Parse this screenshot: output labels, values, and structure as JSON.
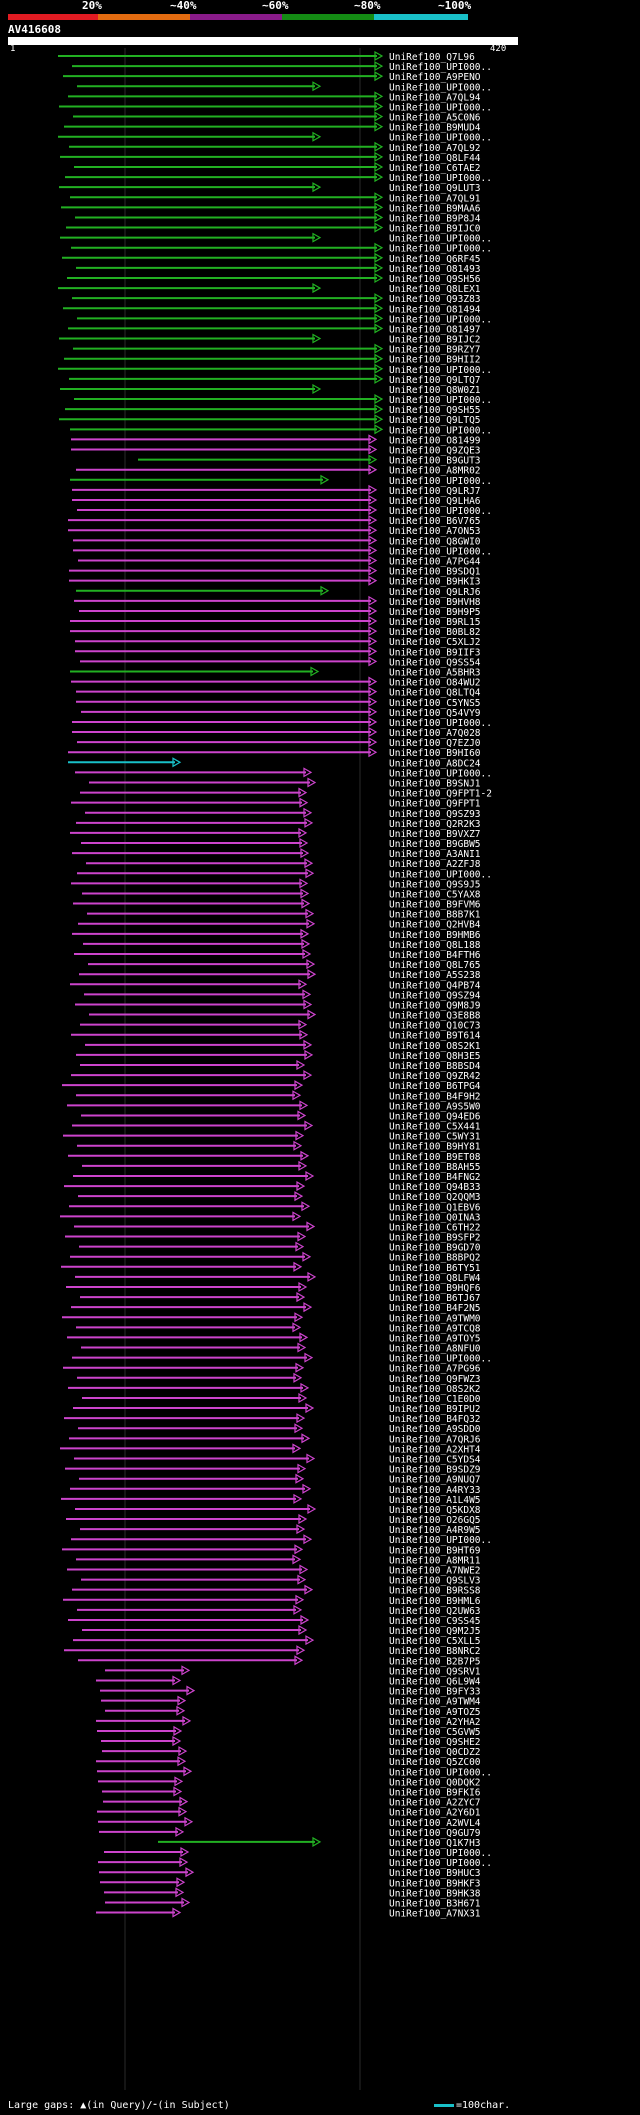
{
  "query_id": "AV416608",
  "ruler": {
    "start": "1",
    "end": "420"
  },
  "percent_scale": [
    {
      "label": "20%",
      "color": "#e11b22"
    },
    {
      "label": "~40%",
      "color": "#e26b10"
    },
    {
      "label": "~60%",
      "color": "#8a1b8a"
    },
    {
      "label": "~80%",
      "color": "#148c14"
    },
    {
      "label": "~100%",
      "color": "#19c0c8"
    }
  ],
  "hit_colors": {
    "magenta": "#cc44cc",
    "green": "#22b022",
    "cyan": "#19c0c8"
  },
  "hits": [
    {
      "name": "UniRef100_Q7L96"
    },
    {
      "name": "UniRef100_UPI000.."
    },
    {
      "name": "UniRef100_A9PENO"
    },
    {
      "name": "UniRef100_UPI000.."
    },
    {
      "name": "UniRef100_A7QL94"
    },
    {
      "name": "UniRef100_UPI000.."
    },
    {
      "name": "UniRef100_A5C0N6"
    },
    {
      "name": "UniRef100_B9MUD4"
    },
    {
      "name": "UniRef100_UPI000.."
    },
    {
      "name": "UniRef100_A7QL92"
    },
    {
      "name": "UniRef100_Q8LF44"
    },
    {
      "name": "UniRef100_C6TAE2"
    },
    {
      "name": "UniRef100_UPI000.."
    },
    {
      "name": "UniRef100_Q9LUT3"
    },
    {
      "name": "UniRef100_A7QL91"
    },
    {
      "name": "UniRef100_B9MAA6"
    },
    {
      "name": "UniRef100_B9P8J4"
    },
    {
      "name": "UniRef100_B9IJC0"
    },
    {
      "name": "UniRef100_UPI000.."
    },
    {
      "name": "UniRef100_UPI000.."
    },
    {
      "name": "UniRef100_Q6RF45"
    },
    {
      "name": "UniRef100_O81493"
    },
    {
      "name": "UniRef100_Q9SH56"
    },
    {
      "name": "UniRef100_Q8LEX1"
    },
    {
      "name": "UniRef100_Q93Z83"
    },
    {
      "name": "UniRef100_O81494"
    },
    {
      "name": "UniRef100_UPI000.."
    },
    {
      "name": "UniRef100_O81497"
    },
    {
      "name": "UniRef100_B9IJC2"
    },
    {
      "name": "UniRef100_B9RZY7"
    },
    {
      "name": "UniRef100_B9HII2"
    },
    {
      "name": "UniRef100_UPI000.."
    },
    {
      "name": "UniRef100_Q9LTQ7"
    },
    {
      "name": "UniRef100_Q8W0Z1"
    },
    {
      "name": "UniRef100_UPI000.."
    },
    {
      "name": "UniRef100_Q9SH55"
    },
    {
      "name": "UniRef100_Q9LTQ5"
    },
    {
      "name": "UniRef100_UPI000.."
    },
    {
      "name": "UniRef100_O81499"
    },
    {
      "name": "UniRef100_Q9ZQE3"
    },
    {
      "name": "UniRef100_B9GUT3"
    },
    {
      "name": "UniRef100_A8MR02"
    },
    {
      "name": "UniRef100_UPI000.."
    },
    {
      "name": "UniRef100_Q9LRJ7"
    },
    {
      "name": "UniRef100_Q9LHA6"
    },
    {
      "name": "UniRef100_UPI000.."
    },
    {
      "name": "UniRef100_B6V765"
    },
    {
      "name": "UniRef100_A7ON53"
    },
    {
      "name": "UniRef100_Q8GWI0"
    },
    {
      "name": "UniRef100_UPI000.."
    },
    {
      "name": "UniRef100_A7PG44"
    },
    {
      "name": "UniRef100_B9SDQ1"
    },
    {
      "name": "UniRef100_B9HKI3"
    },
    {
      "name": "UniRef100_Q9LRJ6"
    },
    {
      "name": "UniRef100_B9HVH8"
    },
    {
      "name": "UniRef100_B9H9P5"
    },
    {
      "name": "UniRef100_B9RL15"
    },
    {
      "name": "UniRef100_B0BL82"
    },
    {
      "name": "UniRef100_C5XLJ2"
    },
    {
      "name": "UniRef100_B9IIF3"
    },
    {
      "name": "UniRef100_Q9SS54"
    },
    {
      "name": "UniRef100_A5BHR3"
    },
    {
      "name": "UniRef100_O84WU2"
    },
    {
      "name": "UniRef100_Q8LTQ4"
    },
    {
      "name": "UniRef100_C5YNS5"
    },
    {
      "name": "UniRef100_Q54VY9"
    },
    {
      "name": "UniRef100_UPI000.."
    },
    {
      "name": "UniRef100_A7Q028"
    },
    {
      "name": "UniRef100_Q7EZJ0"
    },
    {
      "name": "UniRef100_B9HI60"
    },
    {
      "name": "UniRef100_A8DC24"
    },
    {
      "name": "UniRef100_UPI000.."
    },
    {
      "name": "UniRef100_B9SNJ1"
    },
    {
      "name": "UniRef100_Q9FPT1-2"
    },
    {
      "name": "UniRef100_Q9FPT1"
    },
    {
      "name": "UniRef100_Q9SZ93"
    },
    {
      "name": "UniRef100_Q2R2K3"
    },
    {
      "name": "UniRef100_B9VXZ7"
    },
    {
      "name": "UniRef100_B9GBW5"
    },
    {
      "name": "UniRef100_A3ANI1"
    },
    {
      "name": "UniRef100_A2ZFJ8"
    },
    {
      "name": "UniRef100_UPI000.."
    },
    {
      "name": "UniRef100_Q9S9J5"
    },
    {
      "name": "UniRef100_C5YAX8"
    },
    {
      "name": "UniRef100_B9FVM6"
    },
    {
      "name": "UniRef100_B8B7K1"
    },
    {
      "name": "UniRef100_Q2HVB4"
    },
    {
      "name": "UniRef100_B9HMB6"
    },
    {
      "name": "UniRef100_Q8L188"
    },
    {
      "name": "UniRef100_B4FTH6"
    },
    {
      "name": "UniRef100_Q8L765"
    },
    {
      "name": "UniRef100_A5S238"
    },
    {
      "name": "UniRef100_Q4PB74"
    },
    {
      "name": "UniRef100_Q9SZ94"
    },
    {
      "name": "UniRef100_Q9M8J9"
    },
    {
      "name": "UniRef100_Q3E8B8"
    },
    {
      "name": "UniRef100_Q10C73"
    },
    {
      "name": "UniRef100_B9T614"
    },
    {
      "name": "UniRef100_O8S2K1"
    },
    {
      "name": "UniRef100_Q8H3E5"
    },
    {
      "name": "UniRef100_B8BSD4"
    },
    {
      "name": "UniRef100_Q9ZR42"
    },
    {
      "name": "UniRef100_B6TPG4"
    },
    {
      "name": "UniRef100_B4F9H2"
    },
    {
      "name": "UniRef100_A9S5W0"
    },
    {
      "name": "UniRef100_Q94ED6"
    },
    {
      "name": "UniRef100_C5X441"
    },
    {
      "name": "UniRef100_C5WY31"
    },
    {
      "name": "UniRef100_B9HY81"
    },
    {
      "name": "UniRef100_B9ET08"
    },
    {
      "name": "UniRef100_B8AH55"
    },
    {
      "name": "UniRef100_B4FNG2"
    },
    {
      "name": "UniRef100_Q94B33"
    },
    {
      "name": "UniRef100_Q2QQM3"
    },
    {
      "name": "UniRef100_Q1EBV6"
    },
    {
      "name": "UniRef100_Q0INA3"
    },
    {
      "name": "UniRef100_C6TH22"
    },
    {
      "name": "UniRef100_B9SFP2"
    },
    {
      "name": "UniRef100_B9GD70"
    },
    {
      "name": "UniRef100_B8BPQ2"
    },
    {
      "name": "UniRef100_B6TY51"
    },
    {
      "name": "UniRef100_Q8LFW4"
    },
    {
      "name": "UniRef100_B9HQF6"
    },
    {
      "name": "UniRef100_B6TJ67"
    },
    {
      "name": "UniRef100_B4F2N5"
    },
    {
      "name": "UniRef100_A9TWM0"
    },
    {
      "name": "UniRef100_A9TCQ8"
    },
    {
      "name": "UniRef100_A9TOY5"
    },
    {
      "name": "UniRef100_A8NFU0"
    },
    {
      "name": "UniRef100_UPI000.."
    },
    {
      "name": "UniRef100_A7PG96"
    },
    {
      "name": "UniRef100_Q9FWZ3"
    },
    {
      "name": "UniRef100_O8S2K2"
    },
    {
      "name": "UniRef100_C1E0D0"
    },
    {
      "name": "UniRef100_B9IPU2"
    },
    {
      "name": "UniRef100_B4FQ32"
    },
    {
      "name": "UniRef100_A9SDD0"
    },
    {
      "name": "UniRef100_A7QRJ6"
    },
    {
      "name": "UniRef100_A2XHT4"
    },
    {
      "name": "UniRef100_C5YDS4"
    },
    {
      "name": "UniRef100_B9SDZ9"
    },
    {
      "name": "UniRef100_A9NUQ7"
    },
    {
      "name": "UniRef100_A4RY33"
    },
    {
      "name": "UniRef100_A1L4W5"
    },
    {
      "name": "UniRef100_Q5KDX8"
    },
    {
      "name": "UniRef100_O26GQ5"
    },
    {
      "name": "UniRef100_A4R9W5"
    },
    {
      "name": "UniRef100_UPI000.."
    },
    {
      "name": "UniRef100_B9HT69"
    },
    {
      "name": "UniRef100_A8MR11"
    },
    {
      "name": "UniRef100_A7NWE2"
    },
    {
      "name": "UniRef100_Q9SLV3"
    },
    {
      "name": "UniRef100_B9RSS8"
    },
    {
      "name": "UniRef100_B9HML6"
    },
    {
      "name": "UniRef100_Q2UW63"
    },
    {
      "name": "UniRef100_C9SS45"
    },
    {
      "name": "UniRef100_Q9M2J5"
    },
    {
      "name": "UniRef100_C5XLL5"
    },
    {
      "name": "UniRef100_B8NRC2"
    },
    {
      "name": "UniRef100_B2B7P5"
    },
    {
      "name": "UniRef100_Q9SRV1"
    },
    {
      "name": "UniRef100_Q6L9W4"
    },
    {
      "name": "UniRef100_B9FY33"
    },
    {
      "name": "UniRef100_A9TWM4"
    },
    {
      "name": "UniRef100_A9TOZ5"
    },
    {
      "name": "UniRef100_A2YHA2"
    },
    {
      "name": "UniRef100_C5GVW5"
    },
    {
      "name": "UniRef100_Q9SHE2"
    },
    {
      "name": "UniRef100_Q0CDZ2"
    },
    {
      "name": "UniRef100_Q5ZC00"
    },
    {
      "name": "UniRef100_UPI000.."
    },
    {
      "name": "UniRef100_Q0DQK2"
    },
    {
      "name": "UniRef100_B9FKI6"
    },
    {
      "name": "UniRef100_A2ZYC7"
    },
    {
      "name": "UniRef100_A2Y6D1"
    },
    {
      "name": "UniRef100_A2WVL4"
    },
    {
      "name": "UniRef100_Q9GU79"
    },
    {
      "name": "UniRef100_Q1K7H3"
    },
    {
      "name": "UniRef100_UPI000.."
    },
    {
      "name": "UniRef100_UPI000.."
    },
    {
      "name": "UniRef100_B9HUC3"
    },
    {
      "name": "UniRef100_B9HKF3"
    },
    {
      "name": "UniRef100_B9HK38"
    },
    {
      "name": "UniRef100_B3H671"
    },
    {
      "name": "UniRef100_A7NX31"
    }
  ],
  "legend": {
    "large_gaps": "Large gaps: ▲(in Query)/⁃(in Subject)",
    "scale": "=100char."
  }
}
